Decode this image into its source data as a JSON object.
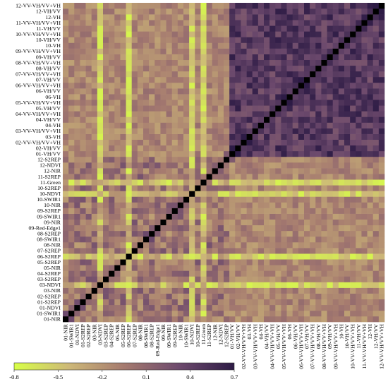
{
  "chart_data": {
    "type": "heatmap",
    "title": "",
    "xlabel": "",
    "ylabel": "",
    "labels": [
      "01-NIR",
      "01-SWIR1",
      "01-NDVI",
      "01-S2REP",
      "02-S2REP",
      "03-NIR",
      "03-NDVI",
      "03-S2REP",
      "04-S2REP",
      "05-NIR",
      "05-S2REP",
      "06-S2REP",
      "07-S2REP",
      "08-NIR",
      "08-SWIR1",
      "08-S2REP",
      "09-Red-Edge1",
      "09-NIR",
      "09-SWIR1",
      "09-S2REP",
      "10-NIR",
      "10-SWIR1",
      "10-NDVI",
      "10-S2REP",
      "11-Green",
      "11-S2REP",
      "12-NIR",
      "12-NDVI",
      "12-S2REP",
      "01-VH/VV",
      "02-VH/VV",
      "02-VV-VH/VV+VH",
      "03-VH",
      "03-VV-VH/VV+VH",
      "04-VH",
      "04-VH/VV",
      "04-VV-VH/VV+VH",
      "05-VH/VV",
      "05-VV-VH/VV+VH",
      "06-VH",
      "06-VH/VV",
      "06-VV-VH/VV+VH",
      "07-VH/VV",
      "07-VV-VH/VV+VH",
      "08-VH/VV",
      "08-VV-VH/VV+VH",
      "09-VH/VV",
      "09-VV-VH/VV+VH",
      "10-VH",
      "10-VH/VV",
      "10-VV-VH/VV+VH",
      "11-VH/VV",
      "11-VV-VH/VV+VH",
      "12-VH",
      "12-VH/VV",
      "12-VV-VH/VV+VH"
    ],
    "x_axis_label_order": "left-to-right",
    "y_axis_label_order": "bottom-to-top",
    "color_range": [
      -0.8,
      0.7
    ],
    "colorbar": {
      "ticks": [
        -0.8,
        -0.5,
        -0.2,
        0.1,
        0.4,
        0.7
      ],
      "tick_labels": [
        "-0.8",
        "-0.5",
        "-0.2",
        "0.1",
        "0.4",
        "0.7"
      ],
      "placement": "bottom",
      "colors": [
        "#d8ff48",
        "#cdb878",
        "#a57a6f",
        "#6d4a6d",
        "#2d1b45"
      ]
    },
    "diagonal_color": "#000000",
    "optical_count": 29,
    "sar_count": 27,
    "blocks": {
      "optical_optical": 0.0,
      "sar_sar": 0.45,
      "optical_sar": -0.12
    },
    "bright_features": [
      "03-NDVI",
      "06-S2REP",
      "10-NDVI",
      "11-Green"
    ],
    "grid": false
  }
}
